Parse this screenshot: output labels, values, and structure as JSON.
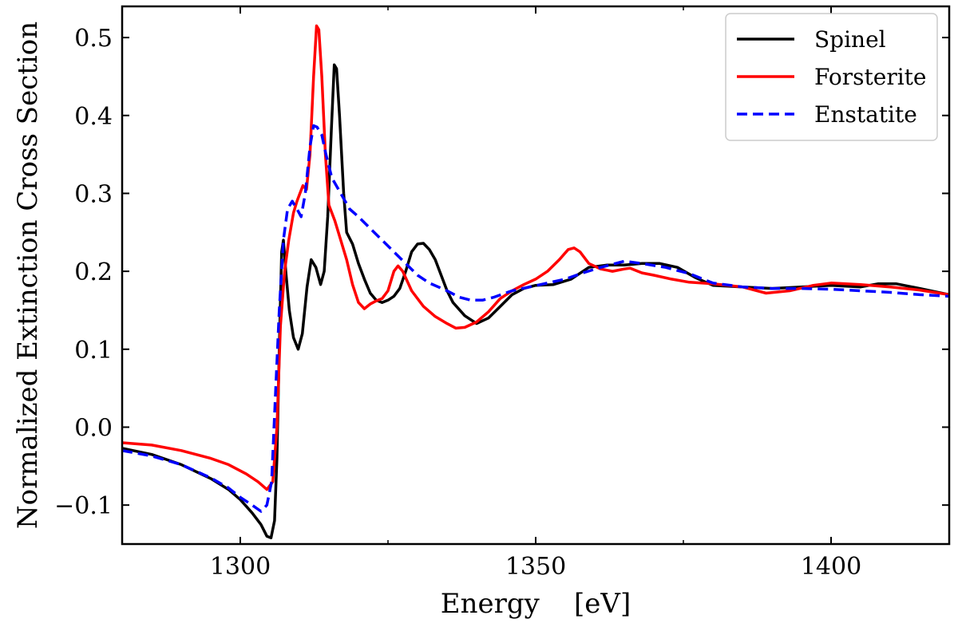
{
  "chart_data": {
    "type": "line",
    "title": "",
    "xlabel": "Energy    [eV]",
    "ylabel": "Normalized Extinction Cross Section",
    "xlim": [
      1280,
      1420
    ],
    "ylim": [
      -0.15,
      0.54
    ],
    "xticks": [
      1300,
      1350,
      1400
    ],
    "xtick_labels": [
      "1300",
      "1350",
      "1400"
    ],
    "xminor": [
      1275,
      1325,
      1375
    ],
    "yticks": [
      -0.1,
      0.0,
      0.1,
      0.2,
      0.3,
      0.4,
      0.5
    ],
    "ytick_labels": [
      "−0.1",
      "0.0",
      "0.1",
      "0.2",
      "0.3",
      "0.4",
      "0.5"
    ],
    "grid": false,
    "legend_position": "top-right",
    "series": [
      {
        "name": "Spinel",
        "color": "#000000",
        "style": "solid",
        "points": [
          [
            1280,
            -0.027
          ],
          [
            1285,
            -0.035
          ],
          [
            1290,
            -0.048
          ],
          [
            1295,
            -0.066
          ],
          [
            1298,
            -0.08
          ],
          [
            1300,
            -0.093
          ],
          [
            1302,
            -0.11
          ],
          [
            1303.5,
            -0.125
          ],
          [
            1304.5,
            -0.14
          ],
          [
            1305.2,
            -0.142
          ],
          [
            1305.8,
            -0.12
          ],
          [
            1306.2,
            -0.04
          ],
          [
            1306.6,
            0.1
          ],
          [
            1307,
            0.225
          ],
          [
            1307.3,
            0.24
          ],
          [
            1307.7,
            0.2
          ],
          [
            1308.3,
            0.15
          ],
          [
            1309,
            0.115
          ],
          [
            1309.8,
            0.1
          ],
          [
            1310.5,
            0.12
          ],
          [
            1311.3,
            0.18
          ],
          [
            1312,
            0.215
          ],
          [
            1312.8,
            0.205
          ],
          [
            1313.6,
            0.183
          ],
          [
            1314.2,
            0.2
          ],
          [
            1314.8,
            0.27
          ],
          [
            1315.4,
            0.38
          ],
          [
            1315.9,
            0.465
          ],
          [
            1316.3,
            0.46
          ],
          [
            1316.8,
            0.4
          ],
          [
            1317.5,
            0.3
          ],
          [
            1318,
            0.25
          ],
          [
            1319,
            0.235
          ],
          [
            1320,
            0.21
          ],
          [
            1321,
            0.19
          ],
          [
            1322,
            0.172
          ],
          [
            1323,
            0.163
          ],
          [
            1324,
            0.16
          ],
          [
            1325,
            0.163
          ],
          [
            1326,
            0.168
          ],
          [
            1327,
            0.178
          ],
          [
            1328,
            0.2
          ],
          [
            1329,
            0.225
          ],
          [
            1330,
            0.235
          ],
          [
            1331,
            0.236
          ],
          [
            1332,
            0.228
          ],
          [
            1333,
            0.215
          ],
          [
            1334,
            0.195
          ],
          [
            1335,
            0.175
          ],
          [
            1336,
            0.16
          ],
          [
            1338,
            0.143
          ],
          [
            1340,
            0.133
          ],
          [
            1342,
            0.14
          ],
          [
            1344,
            0.155
          ],
          [
            1346,
            0.17
          ],
          [
            1348,
            0.178
          ],
          [
            1350,
            0.182
          ],
          [
            1353,
            0.183
          ],
          [
            1356,
            0.19
          ],
          [
            1359,
            0.205
          ],
          [
            1362,
            0.208
          ],
          [
            1365,
            0.208
          ],
          [
            1368,
            0.21
          ],
          [
            1371,
            0.21
          ],
          [
            1374,
            0.205
          ],
          [
            1377,
            0.192
          ],
          [
            1380,
            0.182
          ],
          [
            1385,
            0.18
          ],
          [
            1390,
            0.178
          ],
          [
            1395,
            0.18
          ],
          [
            1400,
            0.182
          ],
          [
            1405,
            0.18
          ],
          [
            1408,
            0.184
          ],
          [
            1411,
            0.184
          ],
          [
            1415,
            0.178
          ],
          [
            1420,
            0.17
          ]
        ]
      },
      {
        "name": "Forsterite",
        "color": "#ff0000",
        "style": "solid",
        "points": [
          [
            1280,
            -0.02
          ],
          [
            1285,
            -0.023
          ],
          [
            1290,
            -0.03
          ],
          [
            1295,
            -0.04
          ],
          [
            1298,
            -0.048
          ],
          [
            1301,
            -0.06
          ],
          [
            1303,
            -0.07
          ],
          [
            1304.5,
            -0.08
          ],
          [
            1305.5,
            -0.07
          ],
          [
            1306.2,
            0.0
          ],
          [
            1306.8,
            0.13
          ],
          [
            1307.5,
            0.2
          ],
          [
            1308.2,
            0.24
          ],
          [
            1309,
            0.275
          ],
          [
            1309.6,
            0.29
          ],
          [
            1310.1,
            0.3
          ],
          [
            1310.6,
            0.31
          ],
          [
            1311.2,
            0.305
          ],
          [
            1311.8,
            0.35
          ],
          [
            1312.4,
            0.45
          ],
          [
            1312.9,
            0.515
          ],
          [
            1313.3,
            0.51
          ],
          [
            1313.8,
            0.45
          ],
          [
            1314.4,
            0.35
          ],
          [
            1315,
            0.285
          ],
          [
            1316,
            0.265
          ],
          [
            1317,
            0.24
          ],
          [
            1318,
            0.215
          ],
          [
            1319,
            0.183
          ],
          [
            1320,
            0.16
          ],
          [
            1321,
            0.152
          ],
          [
            1322,
            0.158
          ],
          [
            1323,
            0.162
          ],
          [
            1324,
            0.165
          ],
          [
            1325,
            0.175
          ],
          [
            1326,
            0.2
          ],
          [
            1326.7,
            0.207
          ],
          [
            1327.5,
            0.2
          ],
          [
            1329,
            0.175
          ],
          [
            1331,
            0.155
          ],
          [
            1333,
            0.142
          ],
          [
            1335,
            0.133
          ],
          [
            1336.5,
            0.127
          ],
          [
            1338,
            0.128
          ],
          [
            1340,
            0.135
          ],
          [
            1342,
            0.148
          ],
          [
            1344,
            0.165
          ],
          [
            1346,
            0.175
          ],
          [
            1348,
            0.183
          ],
          [
            1350,
            0.19
          ],
          [
            1352,
            0.2
          ],
          [
            1354,
            0.215
          ],
          [
            1355.5,
            0.228
          ],
          [
            1356.5,
            0.23
          ],
          [
            1357.5,
            0.225
          ],
          [
            1359,
            0.21
          ],
          [
            1361,
            0.203
          ],
          [
            1363,
            0.2
          ],
          [
            1365,
            0.203
          ],
          [
            1366,
            0.204
          ],
          [
            1368,
            0.198
          ],
          [
            1370,
            0.195
          ],
          [
            1373,
            0.19
          ],
          [
            1376,
            0.186
          ],
          [
            1380,
            0.184
          ],
          [
            1385,
            0.18
          ],
          [
            1389,
            0.172
          ],
          [
            1393,
            0.175
          ],
          [
            1397,
            0.182
          ],
          [
            1400,
            0.185
          ],
          [
            1405,
            0.183
          ],
          [
            1410,
            0.18
          ],
          [
            1415,
            0.176
          ],
          [
            1420,
            0.17
          ]
        ]
      },
      {
        "name": "Enstatite",
        "color": "#0000ff",
        "style": "dashed",
        "points": [
          [
            1280,
            -0.03
          ],
          [
            1285,
            -0.037
          ],
          [
            1290,
            -0.048
          ],
          [
            1295,
            -0.065
          ],
          [
            1298,
            -0.078
          ],
          [
            1300,
            -0.09
          ],
          [
            1302,
            -0.1
          ],
          [
            1303.5,
            -0.108
          ],
          [
            1304.5,
            -0.1
          ],
          [
            1305.3,
            -0.07
          ],
          [
            1306,
            0.05
          ],
          [
            1306.6,
            0.15
          ],
          [
            1307.3,
            0.24
          ],
          [
            1308,
            0.28
          ],
          [
            1308.8,
            0.29
          ],
          [
            1309.6,
            0.28
          ],
          [
            1310.3,
            0.27
          ],
          [
            1311,
            0.3
          ],
          [
            1311.8,
            0.36
          ],
          [
            1312.4,
            0.387
          ],
          [
            1313,
            0.385
          ],
          [
            1313.8,
            0.375
          ],
          [
            1314.5,
            0.35
          ],
          [
            1315.5,
            0.32
          ],
          [
            1317,
            0.3
          ],
          [
            1318.5,
            0.28
          ],
          [
            1320,
            0.27
          ],
          [
            1322,
            0.255
          ],
          [
            1324,
            0.24
          ],
          [
            1326,
            0.225
          ],
          [
            1328,
            0.21
          ],
          [
            1330,
            0.195
          ],
          [
            1332,
            0.185
          ],
          [
            1335,
            0.175
          ],
          [
            1337,
            0.167
          ],
          [
            1339,
            0.163
          ],
          [
            1341,
            0.163
          ],
          [
            1343,
            0.167
          ],
          [
            1346,
            0.175
          ],
          [
            1349,
            0.18
          ],
          [
            1352,
            0.185
          ],
          [
            1355,
            0.19
          ],
          [
            1358,
            0.198
          ],
          [
            1361,
            0.205
          ],
          [
            1365,
            0.213
          ],
          [
            1368,
            0.21
          ],
          [
            1372,
            0.205
          ],
          [
            1376,
            0.197
          ],
          [
            1380,
            0.185
          ],
          [
            1385,
            0.18
          ],
          [
            1390,
            0.178
          ],
          [
            1395,
            0.178
          ],
          [
            1400,
            0.177
          ],
          [
            1405,
            0.175
          ],
          [
            1410,
            0.173
          ],
          [
            1415,
            0.17
          ],
          [
            1420,
            0.168
          ]
        ]
      }
    ]
  }
}
